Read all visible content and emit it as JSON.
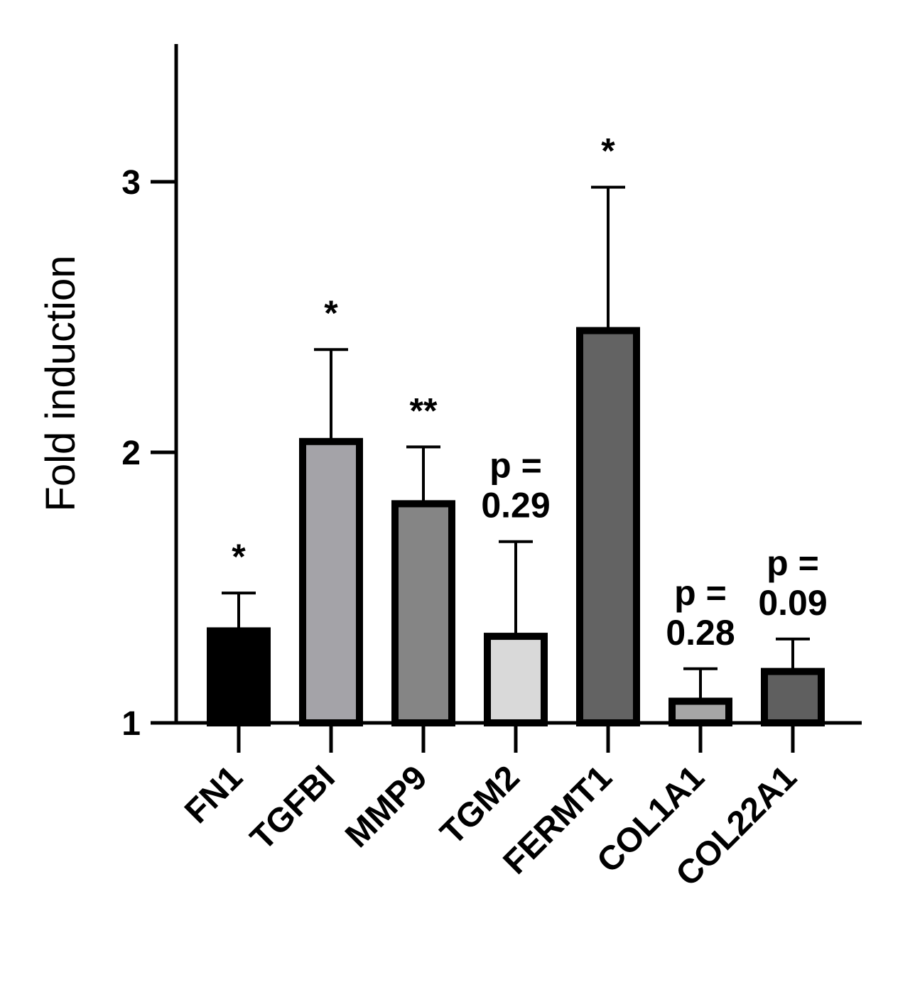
{
  "chart_data": {
    "type": "bar",
    "title": "",
    "xlabel": "",
    "ylabel": "Fold induction",
    "ylim": [
      1,
      3.5
    ],
    "yticks": [
      1,
      2,
      3
    ],
    "yticklabels": [
      "1",
      "2",
      "3"
    ],
    "grid": false,
    "legend": "none",
    "categories": [
      "FN1",
      "TGFBI",
      "MMP9",
      "TGM2",
      "FERMT1",
      "COL1A1",
      "COL22A1"
    ],
    "values": [
      1.34,
      2.04,
      1.81,
      1.32,
      2.45,
      1.08,
      1.19
    ],
    "errors": [
      0.14,
      0.34,
      0.21,
      0.35,
      0.53,
      0.12,
      0.12
    ],
    "annotations": [
      [
        "*"
      ],
      [
        "*"
      ],
      [
        "**"
      ],
      [
        "p =",
        "0.29"
      ],
      [
        "*"
      ],
      [
        "p =",
        "0.28"
      ],
      [
        "p =",
        "0.09"
      ]
    ],
    "colors": [
      "#000000",
      "#a4a3a8",
      "#858585",
      "#d9d9d9",
      "#636363",
      "#a6a6a6",
      "#5f5f5f"
    ]
  }
}
